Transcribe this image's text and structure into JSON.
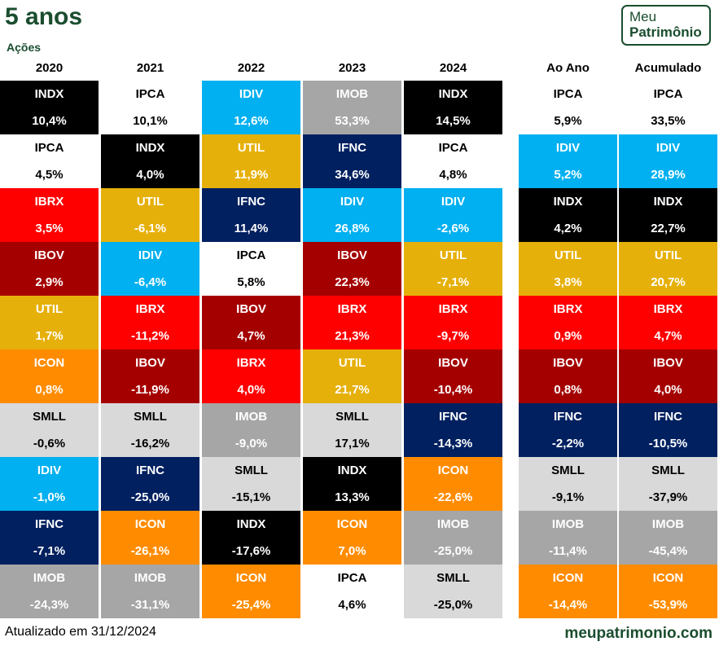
{
  "title": "5 anos",
  "subtitle": "Ações",
  "logo": {
    "line1": "Meu",
    "line2": "Patrimônio"
  },
  "footer": {
    "updated": "Atualizado em 31/12/2024",
    "site": "meupatrimonio.com"
  },
  "colors": {
    "INDX": "#000000",
    "IPCA": "#ffffff",
    "IDIV": "#00b0f0",
    "IMOB": "#a6a6a6",
    "UTIL": "#e6b00a",
    "IFNC": "#002060",
    "IBRX": "#ff0000",
    "IBOV": "#a50000",
    "ICON": "#ff8c00",
    "SMLL": "#d9d9d9"
  },
  "dark_text_indices": [
    "IPCA",
    "SMLL"
  ],
  "columns": [
    {
      "header": "2020",
      "cells": [
        {
          "name": "INDX",
          "value": "10,4%"
        },
        {
          "name": "IPCA",
          "value": "4,5%"
        },
        {
          "name": "IBRX",
          "value": "3,5%"
        },
        {
          "name": "IBOV",
          "value": "2,9%"
        },
        {
          "name": "UTIL",
          "value": "1,7%"
        },
        {
          "name": "ICON",
          "value": "0,8%"
        },
        {
          "name": "SMLL",
          "value": "-0,6%"
        },
        {
          "name": "IDIV",
          "value": "-1,0%"
        },
        {
          "name": "IFNC",
          "value": "-7,1%"
        },
        {
          "name": "IMOB",
          "value": "-24,3%"
        }
      ]
    },
    {
      "header": "2021",
      "cells": [
        {
          "name": "IPCA",
          "value": "10,1%"
        },
        {
          "name": "INDX",
          "value": "4,0%"
        },
        {
          "name": "UTIL",
          "value": "-6,1%"
        },
        {
          "name": "IDIV",
          "value": "-6,4%"
        },
        {
          "name": "IBRX",
          "value": "-11,2%"
        },
        {
          "name": "IBOV",
          "value": "-11,9%"
        },
        {
          "name": "SMLL",
          "value": "-16,2%"
        },
        {
          "name": "IFNC",
          "value": "-25,0%"
        },
        {
          "name": "ICON",
          "value": "-26,1%"
        },
        {
          "name": "IMOB",
          "value": "-31,1%"
        }
      ]
    },
    {
      "header": "2022",
      "cells": [
        {
          "name": "IDIV",
          "value": "12,6%"
        },
        {
          "name": "UTIL",
          "value": "11,9%"
        },
        {
          "name": "IFNC",
          "value": "11,4%"
        },
        {
          "name": "IPCA",
          "value": "5,8%"
        },
        {
          "name": "IBOV",
          "value": "4,7%"
        },
        {
          "name": "IBRX",
          "value": "4,0%"
        },
        {
          "name": "IMOB",
          "value": "-9,0%"
        },
        {
          "name": "SMLL",
          "value": "-15,1%"
        },
        {
          "name": "INDX",
          "value": "-17,6%"
        },
        {
          "name": "ICON",
          "value": "-25,4%"
        }
      ]
    },
    {
      "header": "2023",
      "cells": [
        {
          "name": "IMOB",
          "value": "53,3%"
        },
        {
          "name": "IFNC",
          "value": "34,6%"
        },
        {
          "name": "IDIV",
          "value": "26,8%"
        },
        {
          "name": "IBOV",
          "value": "22,3%"
        },
        {
          "name": "IBRX",
          "value": "21,3%"
        },
        {
          "name": "UTIL",
          "value": "21,7%"
        },
        {
          "name": "SMLL",
          "value": "17,1%"
        },
        {
          "name": "INDX",
          "value": "13,3%"
        },
        {
          "name": "ICON",
          "value": "7,0%"
        },
        {
          "name": "IPCA",
          "value": "4,6%"
        }
      ]
    },
    {
      "header": "2024",
      "cells": [
        {
          "name": "INDX",
          "value": "14,5%"
        },
        {
          "name": "IPCA",
          "value": "4,8%"
        },
        {
          "name": "IDIV",
          "value": "-2,6%"
        },
        {
          "name": "UTIL",
          "value": "-7,1%"
        },
        {
          "name": "IBRX",
          "value": "-9,7%"
        },
        {
          "name": "IBOV",
          "value": "-10,4%"
        },
        {
          "name": "IFNC",
          "value": "-14,3%"
        },
        {
          "name": "ICON",
          "value": "-22,6%"
        },
        {
          "name": "IMOB",
          "value": "-25,0%"
        },
        {
          "name": "SMLL",
          "value": "-25,0%"
        }
      ]
    },
    {
      "header": "Ao Ano",
      "cells": [
        {
          "name": "IPCA",
          "value": "5,9%"
        },
        {
          "name": "IDIV",
          "value": "5,2%"
        },
        {
          "name": "INDX",
          "value": "4,2%"
        },
        {
          "name": "UTIL",
          "value": "3,8%"
        },
        {
          "name": "IBRX",
          "value": "0,9%"
        },
        {
          "name": "IBOV",
          "value": "0,8%"
        },
        {
          "name": "IFNC",
          "value": "-2,2%"
        },
        {
          "name": "SMLL",
          "value": "-9,1%"
        },
        {
          "name": "IMOB",
          "value": "-11,4%"
        },
        {
          "name": "ICON",
          "value": "-14,4%"
        }
      ]
    },
    {
      "header": "Acumulado",
      "cells": [
        {
          "name": "IPCA",
          "value": "33,5%"
        },
        {
          "name": "IDIV",
          "value": "28,9%"
        },
        {
          "name": "INDX",
          "value": "22,7%"
        },
        {
          "name": "UTIL",
          "value": "20,7%"
        },
        {
          "name": "IBRX",
          "value": "4,7%"
        },
        {
          "name": "IBOV",
          "value": "4,0%"
        },
        {
          "name": "IFNC",
          "value": "-10,5%"
        },
        {
          "name": "SMLL",
          "value": "-37,9%"
        },
        {
          "name": "IMOB",
          "value": "-45,4%"
        },
        {
          "name": "ICON",
          "value": "-53,9%"
        }
      ]
    }
  ]
}
